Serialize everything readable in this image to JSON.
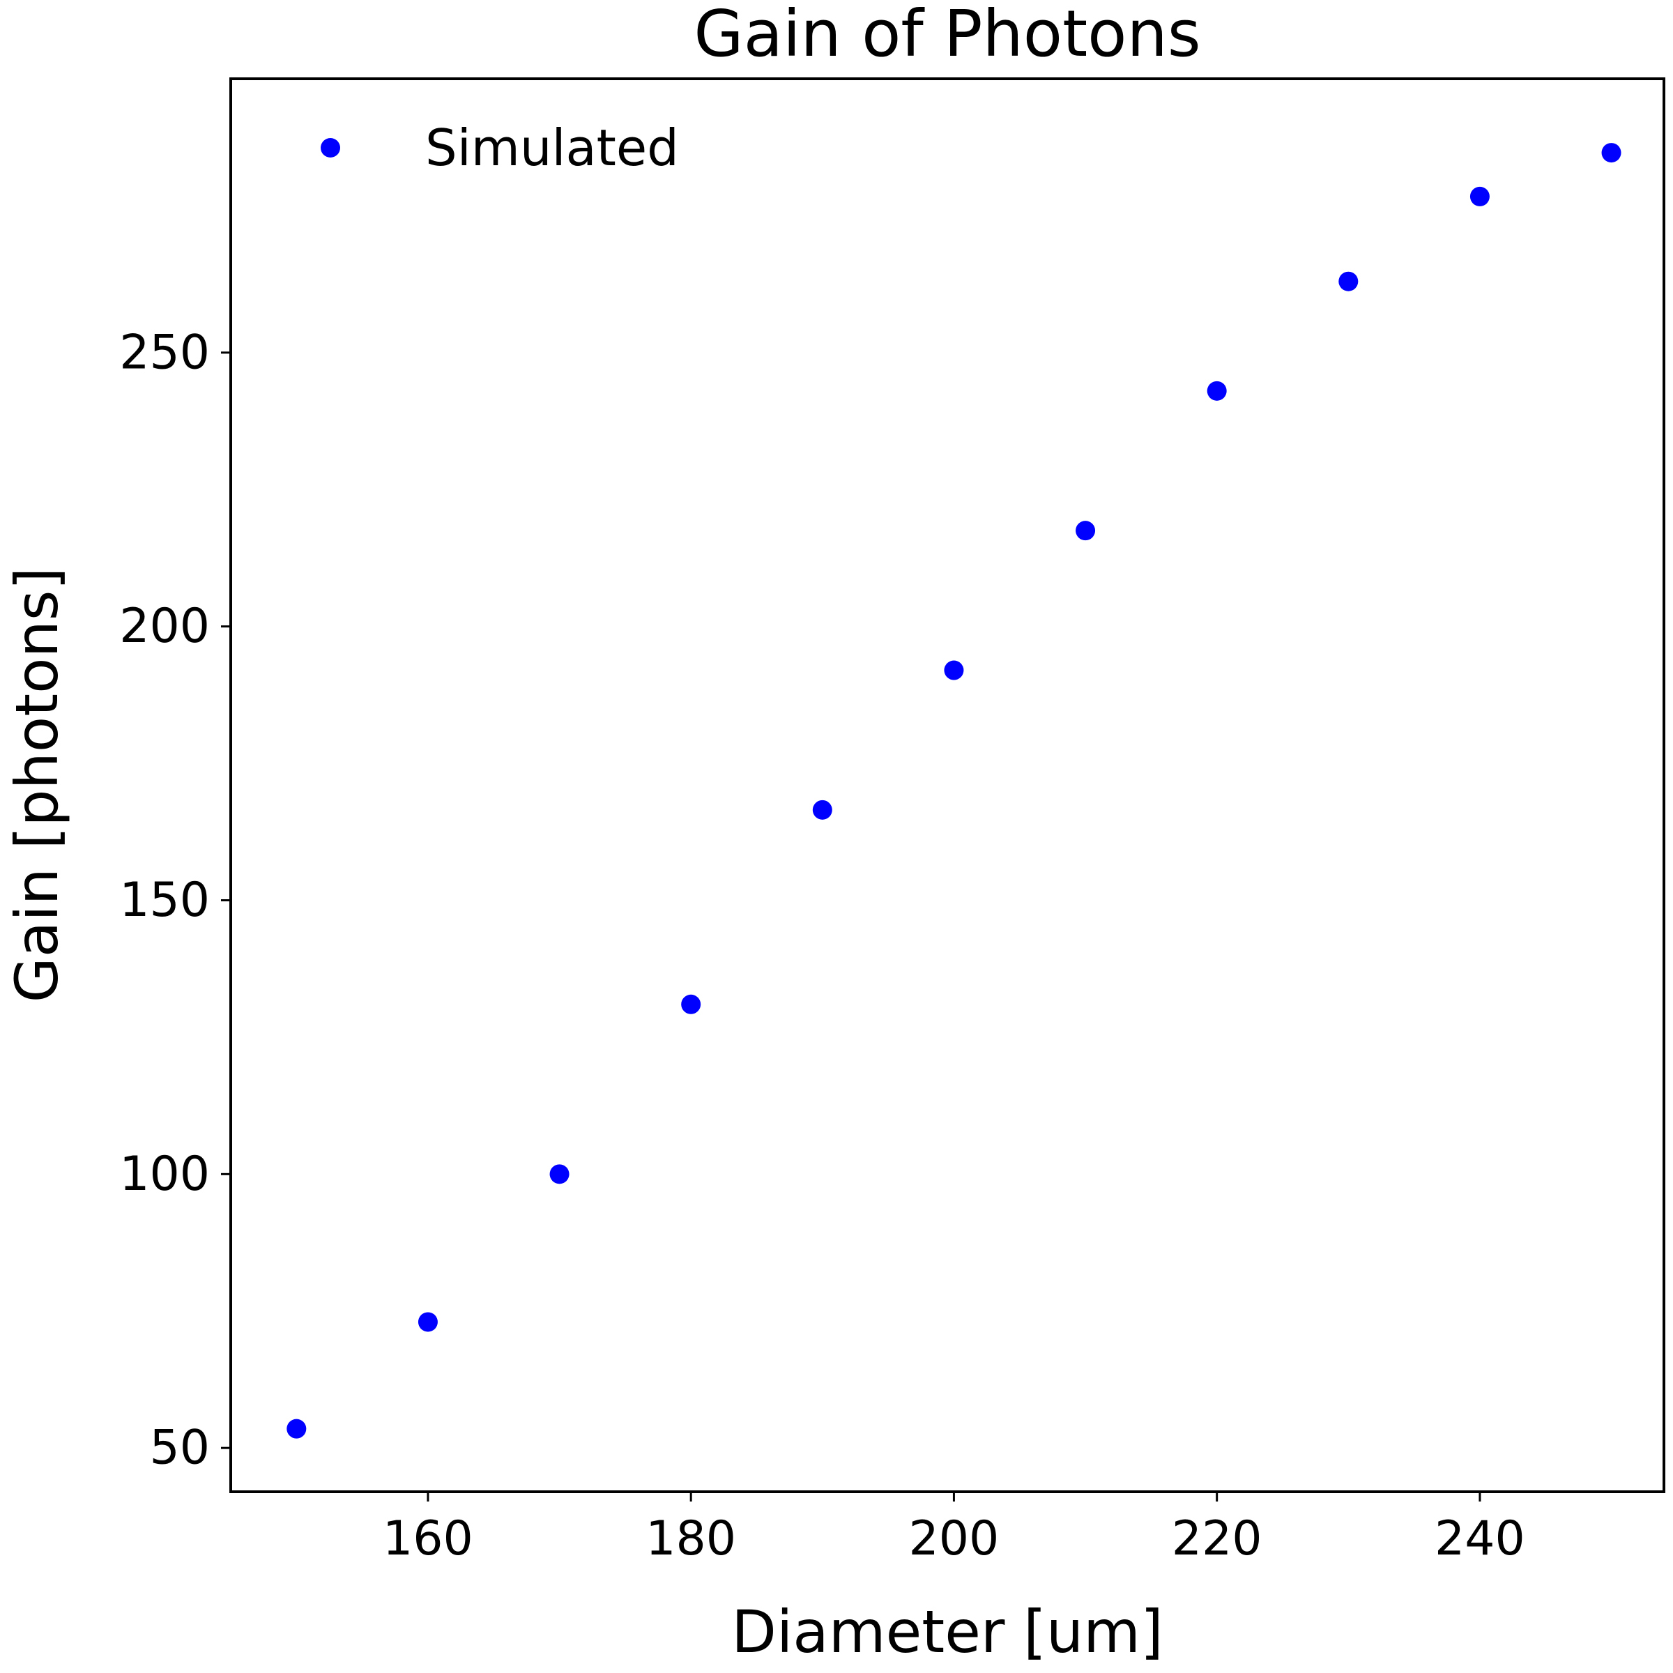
{
  "chart_data": {
    "type": "scatter",
    "title": "Gain of Photons",
    "xlabel": "Diameter [um]",
    "ylabel": "Gain [photons]",
    "xlim": [
      145,
      254
    ],
    "ylim": [
      42,
      300
    ],
    "xticks": [
      160,
      180,
      200,
      220,
      240
    ],
    "yticks": [
      50,
      100,
      150,
      200,
      250
    ],
    "grid": false,
    "legend_position": "top-left",
    "series": [
      {
        "name": "Simulated",
        "color": "#0000ff",
        "marker": "circle",
        "points": [
          {
            "x": 150,
            "y": 53.5
          },
          {
            "x": 160,
            "y": 73.0
          },
          {
            "x": 170,
            "y": 100.0
          },
          {
            "x": 180,
            "y": 131.0
          },
          {
            "x": 190,
            "y": 166.5
          },
          {
            "x": 200,
            "y": 192.0
          },
          {
            "x": 210,
            "y": 217.5
          },
          {
            "x": 220,
            "y": 243.0
          },
          {
            "x": 230,
            "y": 263.0
          },
          {
            "x": 240,
            "y": 278.5
          },
          {
            "x": 250,
            "y": 286.5
          }
        ]
      }
    ]
  }
}
